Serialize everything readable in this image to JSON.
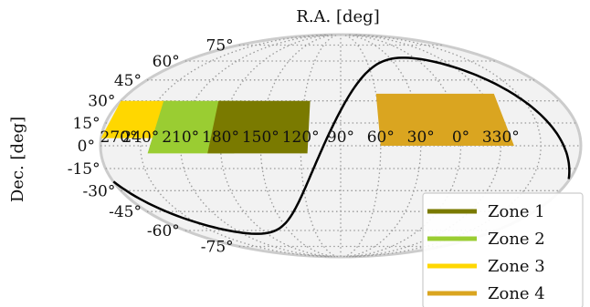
{
  "chart_data": {
    "type": "sky-map",
    "projection": "mollweide",
    "xlabel": "R.A. [deg]",
    "ylabel": "Dec. [deg]",
    "ra_ticks": [
      "270°",
      "240°",
      "210°",
      "180°",
      "150°",
      "120°",
      "90°",
      "60°",
      "30°",
      "0°",
      "330°"
    ],
    "dec_ticks": [
      "75°",
      "60°",
      "45°",
      "30°",
      "15°",
      "0°",
      "-15°",
      "-30°",
      "-45°",
      "-60°",
      "-75°"
    ],
    "grid": true,
    "legend_position": "lower-right",
    "series": [
      {
        "name": "Zone 1",
        "color": "#7a7a00",
        "ra_range": [
          115,
          190
        ],
        "dec_range": [
          -5,
          30
        ]
      },
      {
        "name": "Zone 2",
        "color": "#9acd32",
        "ra_range": [
          170,
          235
        ],
        "dec_range": [
          -5,
          30
        ]
      },
      {
        "name": "Zone 3",
        "color": "#ffd700",
        "ra_range": [
          225,
          270
        ],
        "dec_range": [
          5,
          30
        ]
      },
      {
        "name": "Zone 4",
        "color": "#daa520",
        "ra_range": [
          320,
          60
        ],
        "dec_range": [
          0,
          35
        ]
      }
    ],
    "curve": {
      "name": "galactic-plane",
      "color": "#000000"
    }
  }
}
